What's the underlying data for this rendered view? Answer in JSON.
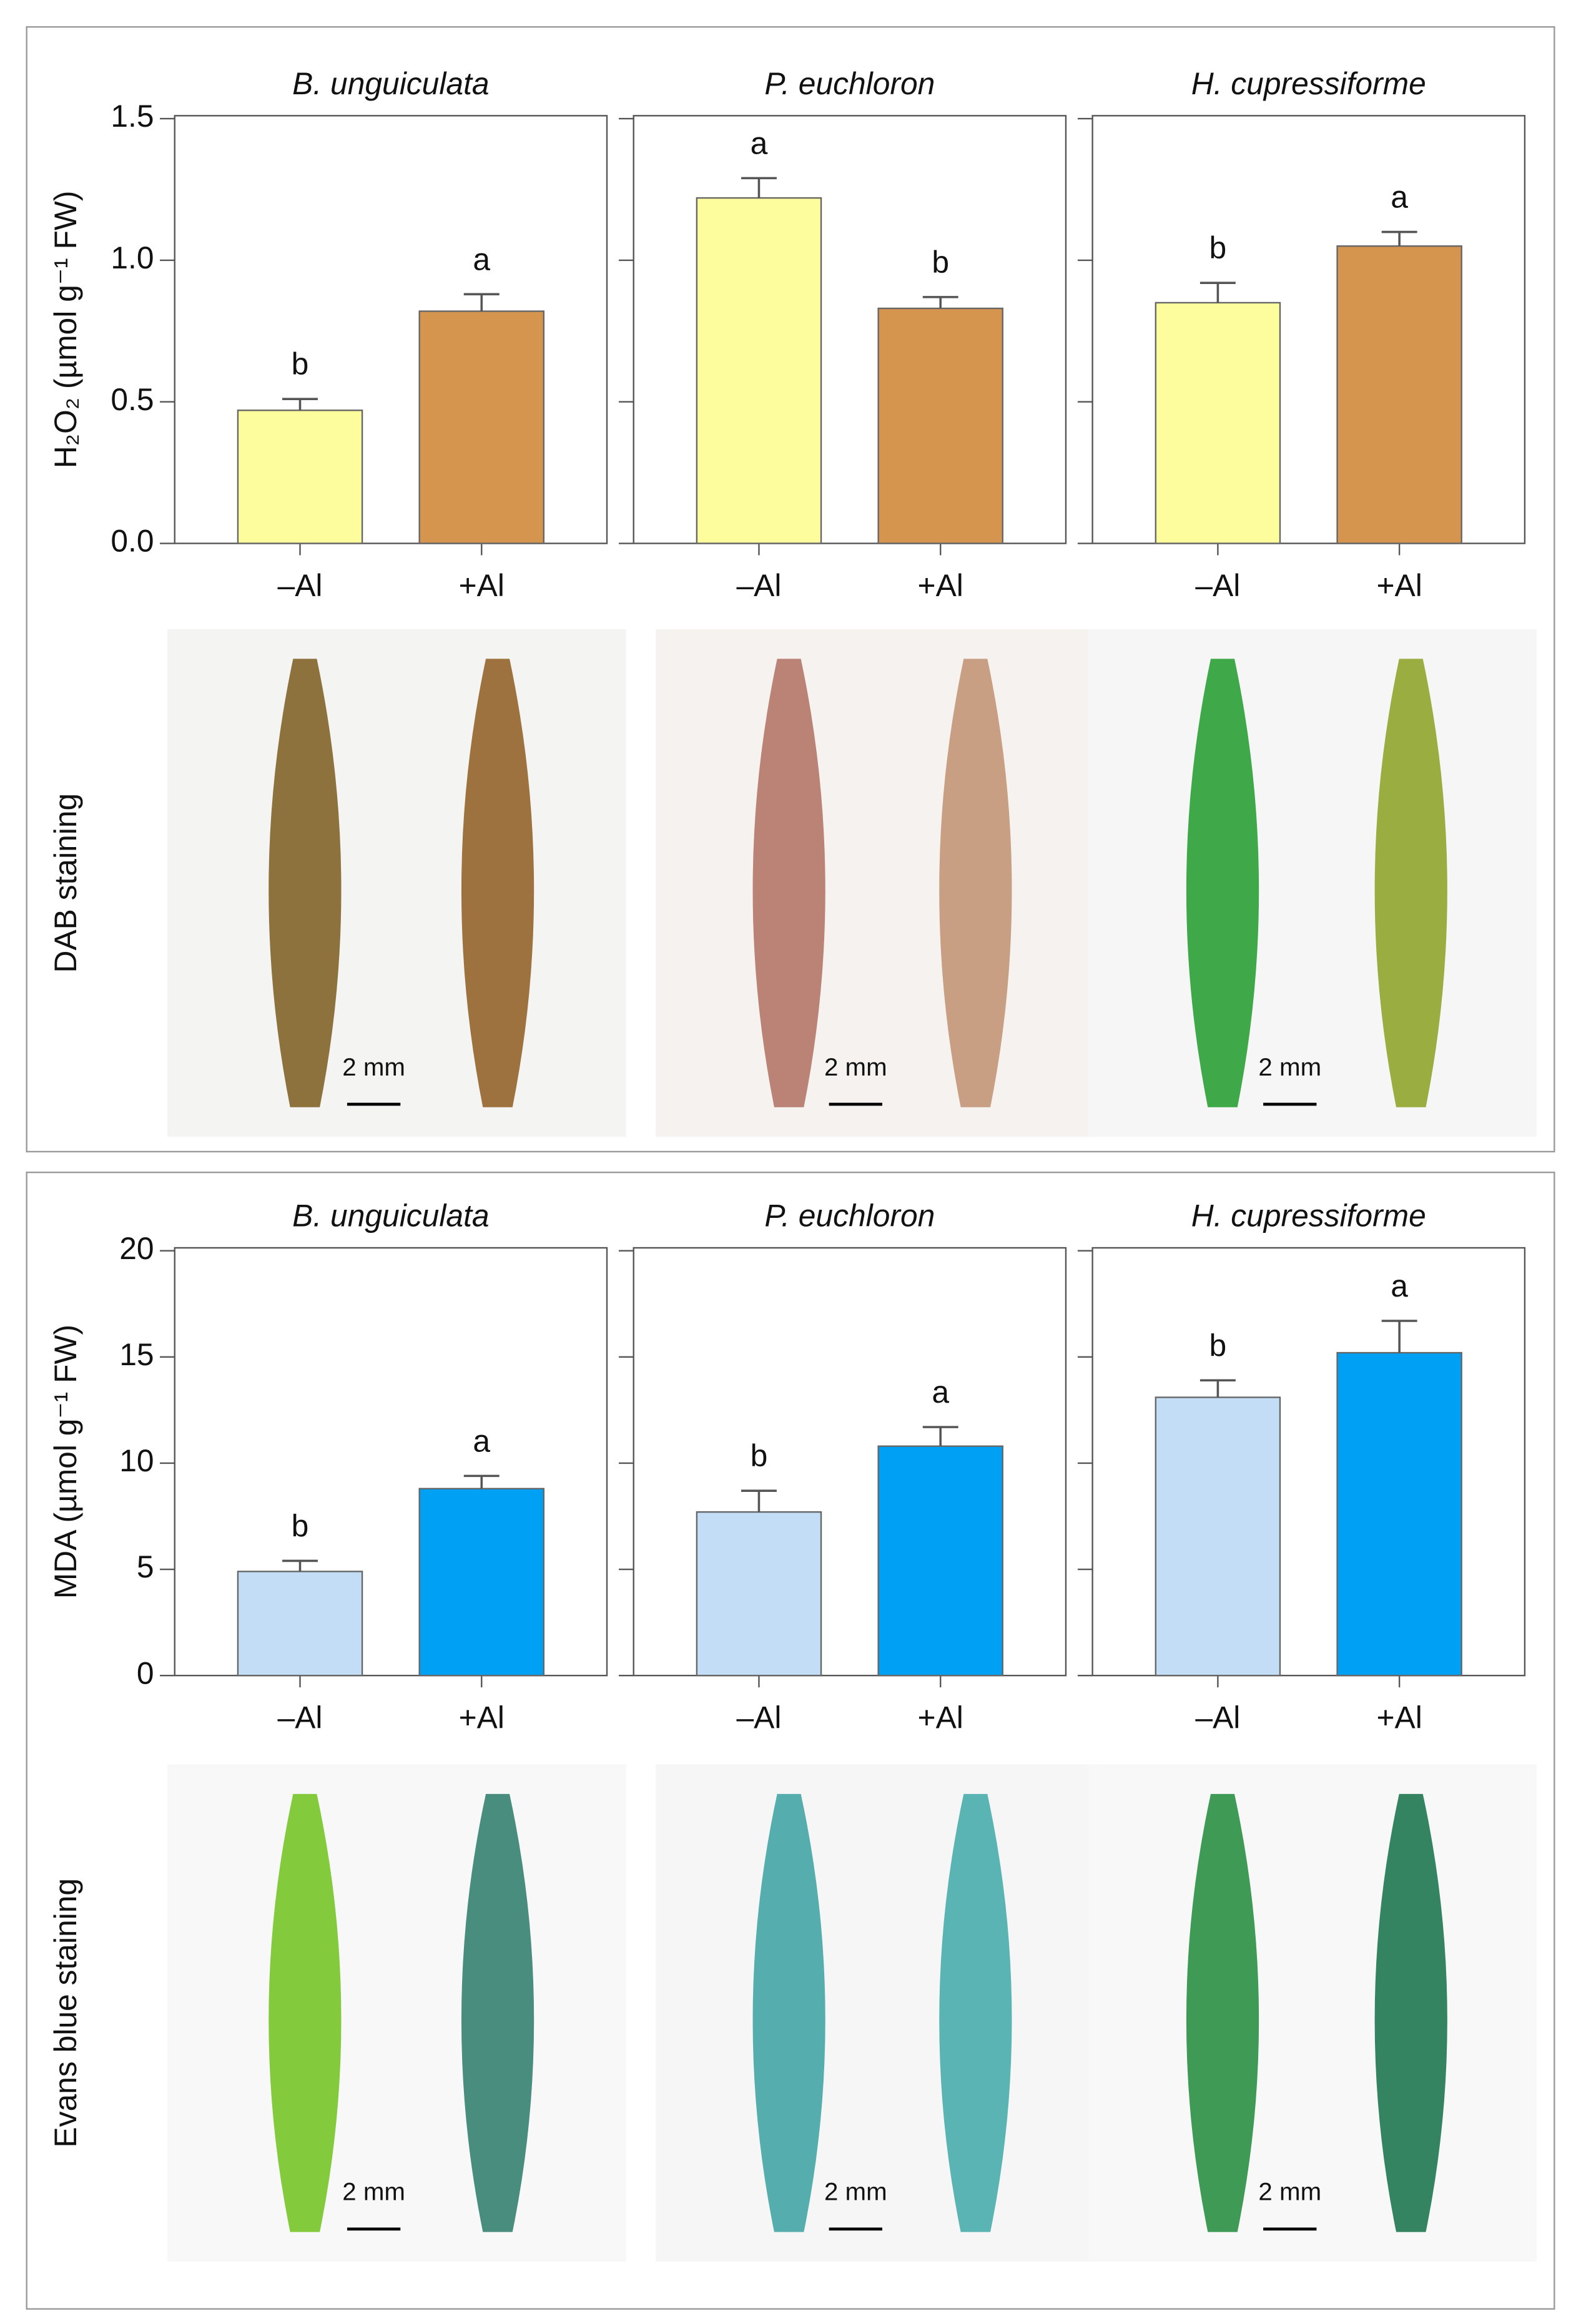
{
  "chart_data": [
    {
      "type": "bar",
      "title": "B. unguiculata",
      "ylabel": "H₂O₂ (µmol g⁻¹ FW)",
      "categories": [
        "–Al",
        "+Al"
      ],
      "values": [
        0.47,
        0.82
      ],
      "errors": [
        0.04,
        0.06
      ],
      "letters": [
        "b",
        "a"
      ],
      "colors": [
        "#fdfd9e",
        "#d6954f"
      ],
      "ylim": [
        0,
        1.5
      ],
      "yticks": [
        {
          "value": 0,
          "label": "0.0"
        },
        0.5,
        {
          "value": 1,
          "label": "1.0"
        },
        1.5
      ]
    },
    {
      "type": "bar",
      "title": "P. euchloron",
      "categories": [
        "–Al",
        "+Al"
      ],
      "values": [
        1.22,
        0.83
      ],
      "errors": [
        0.07,
        0.04
      ],
      "letters": [
        "a",
        "b"
      ],
      "colors": [
        "#fdfd9e",
        "#d6954f"
      ],
      "ylim": [
        0,
        1.5
      ],
      "yticks": [
        0,
        0.5,
        1,
        1.5
      ]
    },
    {
      "type": "bar",
      "title": "H. cupressiforme",
      "categories": [
        "–Al",
        "+Al"
      ],
      "values": [
        0.85,
        1.05
      ],
      "errors": [
        0.07,
        0.05
      ],
      "letters": [
        "b",
        "a"
      ],
      "colors": [
        "#fdfd9e",
        "#d6954f"
      ],
      "ylim": [
        0,
        1.5
      ],
      "yticks": [
        0,
        0.5,
        1,
        1.5
      ]
    },
    {
      "type": "bar",
      "title": "B. unguiculata",
      "ylabel": "MDA (µmol g⁻¹ FW)",
      "categories": [
        "–Al",
        "+Al"
      ],
      "values": [
        4.9,
        8.8
      ],
      "errors": [
        0.5,
        0.6
      ],
      "letters": [
        "b",
        "a"
      ],
      "colors": [
        "#c3ddf6",
        "#00a0f5"
      ],
      "ylim": [
        0,
        20
      ],
      "yticks": [
        0,
        5,
        10,
        15,
        20
      ]
    },
    {
      "type": "bar",
      "title": "P. euchloron",
      "categories": [
        "–Al",
        "+Al"
      ],
      "values": [
        7.7,
        10.8
      ],
      "errors": [
        1.0,
        0.9
      ],
      "letters": [
        "b",
        "a"
      ],
      "colors": [
        "#c3ddf6",
        "#00a0f5"
      ],
      "ylim": [
        0,
        20
      ],
      "yticks": [
        0,
        5,
        10,
        15,
        20
      ]
    },
    {
      "type": "bar",
      "title": "H. cupressiforme",
      "categories": [
        "–Al",
        "+Al"
      ],
      "values": [
        13.1,
        15.2
      ],
      "errors": [
        0.8,
        1.5
      ],
      "letters": [
        "b",
        "a"
      ],
      "colors": [
        "#c3ddf6",
        "#00a0f5"
      ],
      "ylim": [
        0,
        20
      ],
      "yticks": [
        0,
        5,
        10,
        15,
        20
      ]
    }
  ],
  "photos": [
    {
      "label": "DAB staining",
      "scale_bars": [
        "2 mm",
        "2 mm",
        "2 mm"
      ]
    },
    {
      "label": "Evans blue staining",
      "scale_bars": [
        "2 mm",
        "2 mm",
        "2 mm"
      ]
    }
  ]
}
